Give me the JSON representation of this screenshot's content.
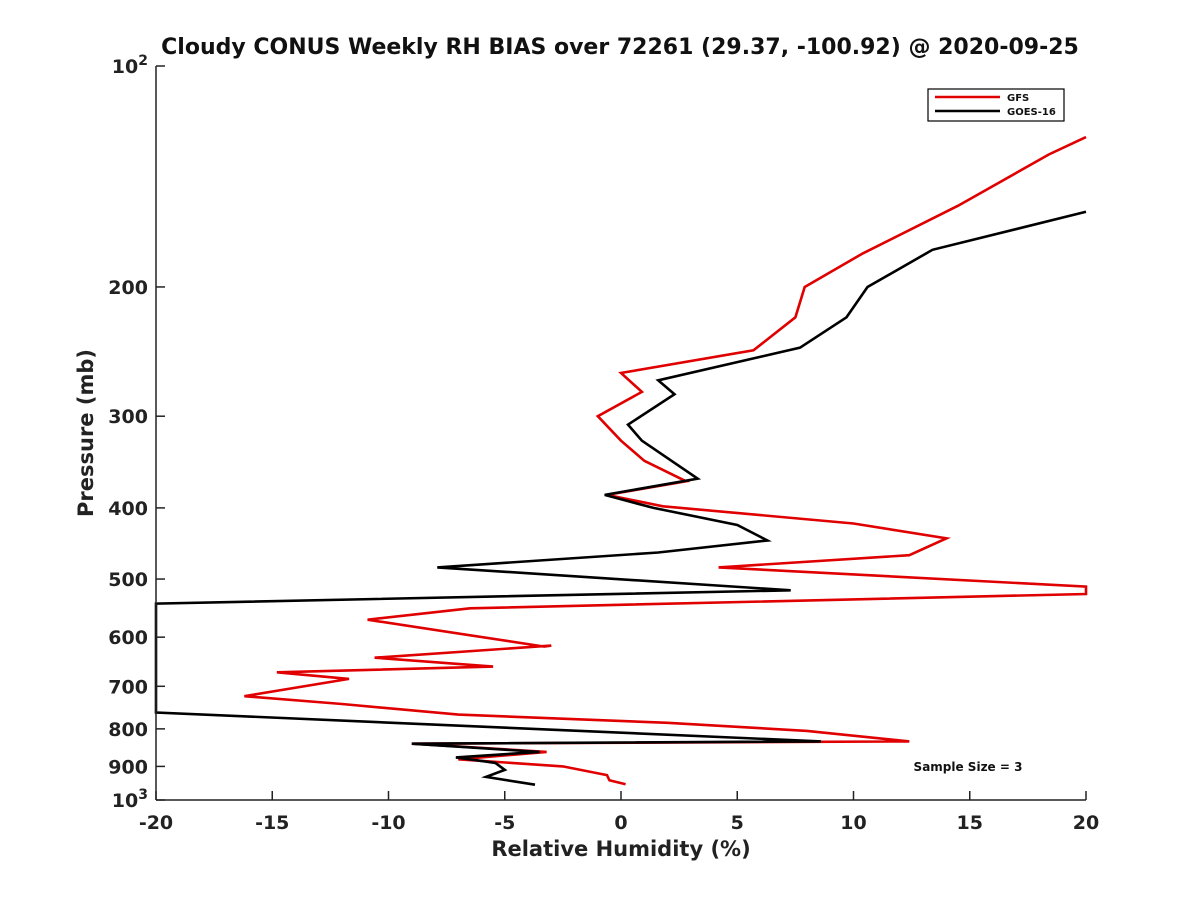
{
  "chart_data": {
    "type": "line",
    "title": "Cloudy CONUS Weekly RH BIAS over 72261 (29.37, -100.92) @ 2020-09-25",
    "xlabel": "Relative Humidity (%)",
    "ylabel": "Pressure (mb)",
    "xlim": [
      -20,
      20
    ],
    "ylim": [
      100,
      1000
    ],
    "y_scale": "log",
    "y_reversed": true,
    "grid": false,
    "legend_position": "top-right",
    "xticks": [
      "-20",
      "-15",
      "-10",
      "-5",
      "0",
      "5",
      "10",
      "15",
      "20"
    ],
    "yticks": [
      {
        "value": 100,
        "label": "10",
        "sup": "2"
      },
      {
        "value": 200,
        "label": "200",
        "sup": ""
      },
      {
        "value": 300,
        "label": "300",
        "sup": ""
      },
      {
        "value": 400,
        "label": "400",
        "sup": ""
      },
      {
        "value": 500,
        "label": "500",
        "sup": ""
      },
      {
        "value": 600,
        "label": "600",
        "sup": ""
      },
      {
        "value": 700,
        "label": "700",
        "sup": ""
      },
      {
        "value": 800,
        "label": "800",
        "sup": ""
      },
      {
        "value": 900,
        "label": "900",
        "sup": ""
      },
      {
        "value": 1000,
        "label": "10",
        "sup": "3"
      }
    ],
    "annotation": "Sample Size = 3",
    "series": [
      {
        "name": "GFS",
        "color": "#e00000",
        "points": [
          [
            20.0,
            125
          ],
          [
            18.4,
            132
          ],
          [
            14.5,
            155
          ],
          [
            10.4,
            180
          ],
          [
            7.9,
            200
          ],
          [
            7.5,
            220
          ],
          [
            5.7,
            244
          ],
          [
            0.0,
            262
          ],
          [
            0.9,
            278
          ],
          [
            -1.0,
            300
          ],
          [
            0.0,
            324
          ],
          [
            1.0,
            345
          ],
          [
            2.8,
            368
          ],
          [
            -0.6,
            384
          ],
          [
            1.8,
            398
          ],
          [
            10.0,
            420
          ],
          [
            14.0,
            440
          ],
          [
            12.4,
            464
          ],
          [
            4.2,
            482
          ],
          [
            20.0,
            512
          ],
          [
            20.0,
            524
          ],
          [
            -6.5,
            548
          ],
          [
            -10.9,
            568
          ],
          [
            -3.3,
            618
          ],
          [
            -3.0,
            616
          ],
          [
            -10.6,
            640
          ],
          [
            -5.5,
            658
          ],
          [
            -14.8,
            670
          ],
          [
            -11.7,
            684
          ],
          [
            -16.2,
            722
          ],
          [
            -12.0,
            740
          ],
          [
            -7.0,
            765
          ],
          [
            2.0,
            785
          ],
          [
            8.0,
            805
          ],
          [
            12.4,
            832
          ],
          [
            -9.0,
            838
          ],
          [
            -3.2,
            860
          ],
          [
            -7.0,
            880
          ],
          [
            -2.5,
            900
          ],
          [
            -0.6,
            925
          ],
          [
            -0.5,
            940
          ],
          [
            0.2,
            952
          ]
        ]
      },
      {
        "name": "GOES-16",
        "color": "#000000",
        "points": [
          [
            20.0,
            158
          ],
          [
            13.4,
            178
          ],
          [
            10.6,
            200
          ],
          [
            9.7,
            220
          ],
          [
            7.7,
            242
          ],
          [
            1.6,
            268
          ],
          [
            2.3,
            280
          ],
          [
            0.3,
            308
          ],
          [
            0.9,
            324
          ],
          [
            3.3,
            365
          ],
          [
            -0.7,
            384
          ],
          [
            1.4,
            400
          ],
          [
            5.0,
            422
          ],
          [
            6.3,
            443
          ],
          [
            1.6,
            460
          ],
          [
            -7.9,
            482
          ],
          [
            7.3,
            518
          ],
          [
            -20.0,
            540
          ],
          [
            -20.0,
            760
          ],
          [
            8.6,
            832
          ],
          [
            -9.0,
            838
          ],
          [
            -3.5,
            860
          ],
          [
            -7.1,
            875
          ],
          [
            -5.4,
            890
          ],
          [
            -5.0,
            910
          ],
          [
            -5.8,
            930
          ],
          [
            -3.7,
            953
          ]
        ]
      }
    ]
  }
}
